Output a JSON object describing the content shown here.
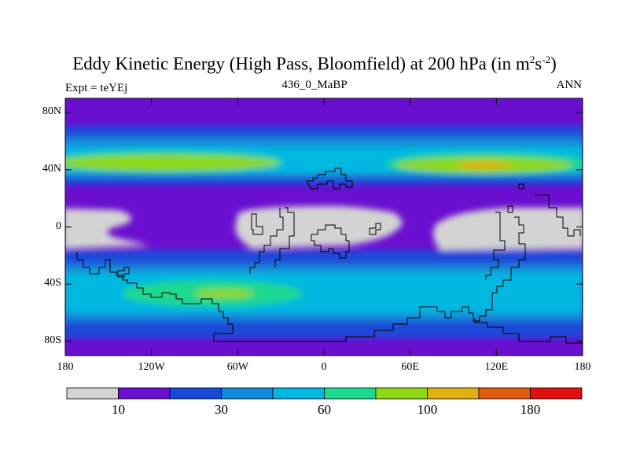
{
  "header": {
    "title_main": "Eddy Kinetic Energy (High Pass, Bloomfield) at 200 hPa (in m",
    "title_sup1": "2",
    "title_mid": "s",
    "title_sup2": "-2",
    "title_end": ")",
    "subtitle": "436_0_MaBP",
    "left_note": "Expt = teYEj",
    "right_note": "ANN"
  },
  "map": {
    "lon_range": [
      -180,
      180
    ],
    "lat_range": [
      -90,
      90
    ],
    "y_tick_labels": [
      {
        "lat": 80,
        "label": "80N"
      },
      {
        "lat": 40,
        "label": "40N"
      },
      {
        "lat": 0,
        "label": "0"
      },
      {
        "lat": -40,
        "label": "40S"
      },
      {
        "lat": -80,
        "label": "80S"
      }
    ],
    "x_tick_labels": [
      {
        "lon": -180,
        "label": "180"
      },
      {
        "lon": -120,
        "label": "120W"
      },
      {
        "lon": -60,
        "label": "60W"
      },
      {
        "lon": 0,
        "label": "0"
      },
      {
        "lon": 60,
        "label": "60E"
      },
      {
        "lon": 120,
        "label": "120E"
      },
      {
        "lon": 180,
        "label": "180"
      }
    ]
  },
  "colorbar": {
    "colors": [
      "#d3d3d3",
      "#6a0fd0",
      "#1a48d8",
      "#1288d8",
      "#00b8e0",
      "#1cd890",
      "#90d818",
      "#e0b010",
      "#e05a10",
      "#e01010"
    ],
    "labels": [
      {
        "after_box": 1,
        "text": "10"
      },
      {
        "after_box": 3,
        "text": "30"
      },
      {
        "after_box": 5,
        "text": "60"
      },
      {
        "after_box": 7,
        "text": "100"
      },
      {
        "after_box": 9,
        "text": "180"
      }
    ]
  },
  "colors": {
    "c_gray": "#d3d3d3",
    "c_purple": "#6a0fd0",
    "c_blue": "#1a48d8",
    "c_mid": "#1288d8",
    "c_cyan": "#00b8e0",
    "c_green": "#1cd890",
    "c_lime": "#90d818",
    "c_orange": "#e0b010"
  }
}
